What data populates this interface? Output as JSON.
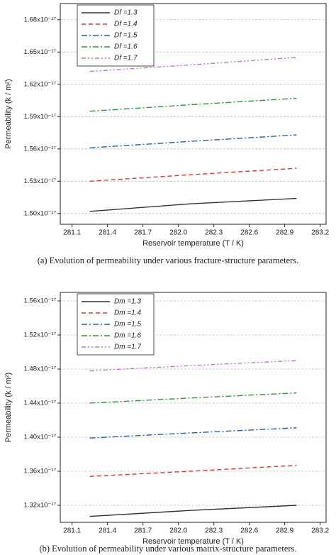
{
  "chart_data": [
    {
      "type": "line",
      "caption": "(a) Evolution of permeability under various fracture-structure parameters.",
      "xlabel": "Reservoir temperature (T / K)",
      "ylabel": "Permeability (k / m²)",
      "x": [
        281.25,
        282.1,
        283.0
      ],
      "xlim": [
        281.0,
        283.25
      ],
      "xticks": [
        281.1,
        281.4,
        281.7,
        {
          "value": 282.0,
          "label": "282.0"
        },
        282.3,
        282.6,
        282.9,
        283.2
      ],
      "ylim": [
        1.49e-17,
        1.695e-17
      ],
      "yticks": [
        {
          "value": 1.5e-17,
          "label": "1.50x10⁻¹⁷"
        },
        {
          "value": 1.53e-17,
          "label": "1.53x10⁻¹⁷"
        },
        {
          "value": 1.56e-17,
          "label": "1.56x10⁻¹⁷"
        },
        {
          "value": 1.59e-17,
          "label": "1.59x10⁻¹⁷"
        },
        {
          "value": 1.62e-17,
          "label": "1.62x10⁻¹⁷"
        },
        {
          "value": 1.65e-17,
          "label": "1.65x10⁻¹⁷"
        },
        {
          "value": 1.68e-17,
          "label": "1.68x10⁻¹⁷"
        }
      ],
      "grid": true,
      "legend": "upper left",
      "series": [
        {
          "name": "Df =1.3",
          "color": "#333333",
          "values": [
            1.502e-17,
            1.509e-17,
            1.514e-17
          ]
        },
        {
          "name": "Df =1.4",
          "color": "#e8332f",
          "values": [
            1.53e-17,
            1.536e-17,
            1.542e-17
          ]
        },
        {
          "name": "Df =1.5",
          "color": "#1f5fbf",
          "values": [
            1.561e-17,
            1.567e-17,
            1.573e-17
          ]
        },
        {
          "name": "Df =1.6",
          "color": "#2a9a3a",
          "values": [
            1.595e-17,
            1.601e-17,
            1.607e-17
          ]
        },
        {
          "name": "Df =1.7",
          "color": "#c070e0",
          "values": [
            1.632e-17,
            1.638e-17,
            1.645e-17
          ]
        }
      ]
    },
    {
      "type": "line",
      "caption": "(b) Evolution of permeability under various matrix-structure parameters.",
      "xlabel": "Reservoir temperature (T / K)",
      "ylabel": "Permeability (k / m²)",
      "x": [
        281.25,
        282.1,
        283.0
      ],
      "xlim": [
        281.0,
        283.25
      ],
      "xticks": [
        281.1,
        281.4,
        281.7,
        {
          "value": 282.0,
          "label": "282.0"
        },
        282.3,
        282.6,
        282.9,
        283.2
      ],
      "ylim": [
        1.3e-17,
        1.57e-17
      ],
      "yticks": [
        {
          "value": 1.32e-17,
          "label": "1.32x10⁻¹⁷"
        },
        {
          "value": 1.36e-17,
          "label": "1.36x10⁻¹⁷"
        },
        {
          "value": 1.4e-17,
          "label": "1.40x10⁻¹⁷"
        },
        {
          "value": 1.44e-17,
          "label": "1.44x10⁻¹⁷"
        },
        {
          "value": 1.48e-17,
          "label": "1.48x10⁻¹⁷"
        },
        {
          "value": 1.52e-17,
          "label": "1.52x10⁻¹⁷"
        },
        {
          "value": 1.56e-17,
          "label": "1.56x10⁻¹⁷"
        }
      ],
      "grid": true,
      "legend": "upper left",
      "series": [
        {
          "name": "Dm =1.3",
          "color": "#333333",
          "values": [
            1.307e-17,
            1.314e-17,
            1.32e-17
          ]
        },
        {
          "name": "Dm =1.4",
          "color": "#e8332f",
          "values": [
            1.354e-17,
            1.36e-17,
            1.367e-17
          ]
        },
        {
          "name": "Dm =1.5",
          "color": "#1f5fbf",
          "values": [
            1.399e-17,
            1.405e-17,
            1.411e-17
          ]
        },
        {
          "name": "Dm =1.6",
          "color": "#2a9a3a",
          "values": [
            1.44e-17,
            1.446e-17,
            1.452e-17
          ]
        },
        {
          "name": "Dm =1.7",
          "color": "#c070e0",
          "values": [
            1.478e-17,
            1.484e-17,
            1.49e-17
          ]
        }
      ]
    }
  ]
}
